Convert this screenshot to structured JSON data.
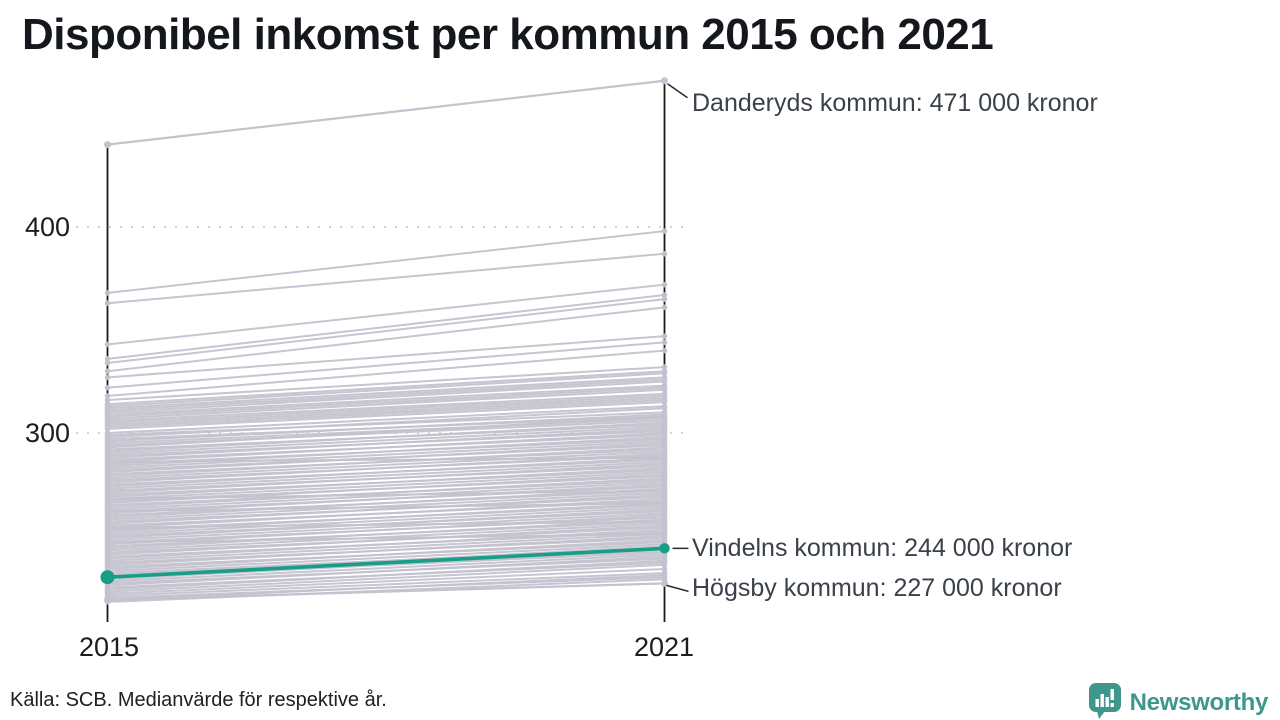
{
  "title": "Disponibel inkomst per kommun 2015 och 2021",
  "footer": {
    "source": "Källa: SCB. Medianvärde för respektive år."
  },
  "branding": {
    "name": "Newsworthy"
  },
  "colors": {
    "background_line": "#c4c2ce",
    "highlight": "#189e87",
    "axis": "#1a1a1a",
    "grid": "#d2d2d2",
    "annotation_text": "#3b414b",
    "connector": "#2b2b2b",
    "brand_teal": "#3d978d",
    "title_text": "#14171c"
  },
  "chart_data": {
    "type": "line",
    "subtype": "slope-chart",
    "title": "Disponibel inkomst per kommun 2015 och 2021",
    "x_labels": [
      "2015",
      "2021"
    ],
    "ytick_labels": [
      "400",
      "300"
    ],
    "yticks": [
      400,
      300
    ],
    "ylim": [
      213,
      478
    ],
    "unit": "thousand kronor (median disposable income per municipality)",
    "grid": "dotted",
    "annotated_series": [
      {
        "name": "Danderyds kommun",
        "values": [
          440,
          471
        ],
        "label": "Danderyds kommun: 471 000 kronor",
        "highlight": false
      },
      {
        "name": "Vindelns kommun",
        "values": [
          230,
          244
        ],
        "label": "Vindelns kommun: 244 000 kronor",
        "highlight": true
      },
      {
        "name": "Högsby kommun",
        "values": [
          219,
          227
        ],
        "label": "Högsby kommun: 227 000 kronor",
        "highlight": false
      }
    ],
    "background_lines": [
      [
        368,
        398
      ],
      [
        363,
        387
      ],
      [
        343,
        372
      ],
      [
        336,
        367
      ],
      [
        334,
        365
      ],
      [
        330,
        361
      ],
      [
        327,
        347
      ],
      [
        322,
        344
      ],
      [
        318,
        340
      ],
      [
        316,
        332
      ],
      [
        314,
        330
      ],
      [
        313,
        329
      ],
      [
        312,
        327
      ],
      [
        311,
        326
      ],
      [
        310,
        325
      ],
      [
        309,
        323
      ],
      [
        308,
        322
      ],
      [
        307,
        321
      ],
      [
        306,
        319
      ],
      [
        305,
        318
      ],
      [
        304,
        317
      ],
      [
        303,
        316
      ],
      [
        302,
        315
      ],
      [
        300,
        313
      ],
      [
        299,
        310
      ],
      [
        298,
        312
      ],
      [
        297,
        308
      ],
      [
        296,
        309
      ],
      [
        295,
        307
      ],
      [
        294,
        306
      ],
      [
        293,
        308
      ],
      [
        292,
        304
      ],
      [
        291,
        305
      ],
      [
        290,
        303
      ],
      [
        289,
        301
      ],
      [
        288,
        302
      ],
      [
        287,
        299
      ],
      [
        286,
        300
      ],
      [
        285,
        297
      ],
      [
        284,
        298
      ],
      [
        283,
        296
      ],
      [
        282,
        294
      ],
      [
        281,
        295
      ],
      [
        280,
        292
      ],
      [
        279,
        293
      ],
      [
        278,
        291
      ],
      [
        277,
        289
      ],
      [
        276,
        290
      ],
      [
        275,
        287
      ],
      [
        274,
        288
      ],
      [
        273,
        286
      ],
      [
        272,
        284
      ],
      [
        271,
        285
      ],
      [
        270,
        282
      ],
      [
        269,
        283
      ],
      [
        268,
        281
      ],
      [
        267,
        279
      ],
      [
        266,
        280
      ],
      [
        265,
        277
      ],
      [
        264,
        278
      ],
      [
        263,
        276
      ],
      [
        262,
        274
      ],
      [
        261,
        275
      ],
      [
        260,
        272
      ],
      [
        259,
        273
      ],
      [
        258,
        271
      ],
      [
        257,
        269
      ],
      [
        256,
        270
      ],
      [
        255,
        267
      ],
      [
        254,
        268
      ],
      [
        253,
        265
      ],
      [
        252,
        266
      ],
      [
        251,
        264
      ],
      [
        250,
        262
      ],
      [
        249,
        263
      ],
      [
        248,
        261
      ],
      [
        247,
        259
      ],
      [
        246,
        260
      ],
      [
        245,
        257
      ],
      [
        244,
        258
      ],
      [
        243,
        256
      ],
      [
        242,
        254
      ],
      [
        241,
        255
      ],
      [
        240,
        252
      ],
      [
        239,
        253
      ],
      [
        238,
        251
      ],
      [
        237,
        249
      ],
      [
        236,
        250
      ],
      [
        235,
        247
      ],
      [
        234,
        248
      ],
      [
        233,
        246
      ],
      [
        232,
        244
      ],
      [
        231,
        245
      ],
      [
        230,
        242
      ],
      [
        229,
        243
      ],
      [
        228,
        241
      ],
      [
        227,
        239
      ],
      [
        226,
        240
      ],
      [
        225,
        237
      ],
      [
        224,
        238
      ],
      [
        223,
        236
      ],
      [
        222,
        234
      ],
      [
        221,
        232
      ],
      [
        220,
        230
      ],
      [
        218,
        229
      ],
      [
        219,
        231
      ],
      [
        268,
        272
      ],
      [
        262,
        266
      ],
      [
        247,
        251
      ],
      [
        286,
        288
      ],
      [
        254,
        257
      ]
    ]
  }
}
